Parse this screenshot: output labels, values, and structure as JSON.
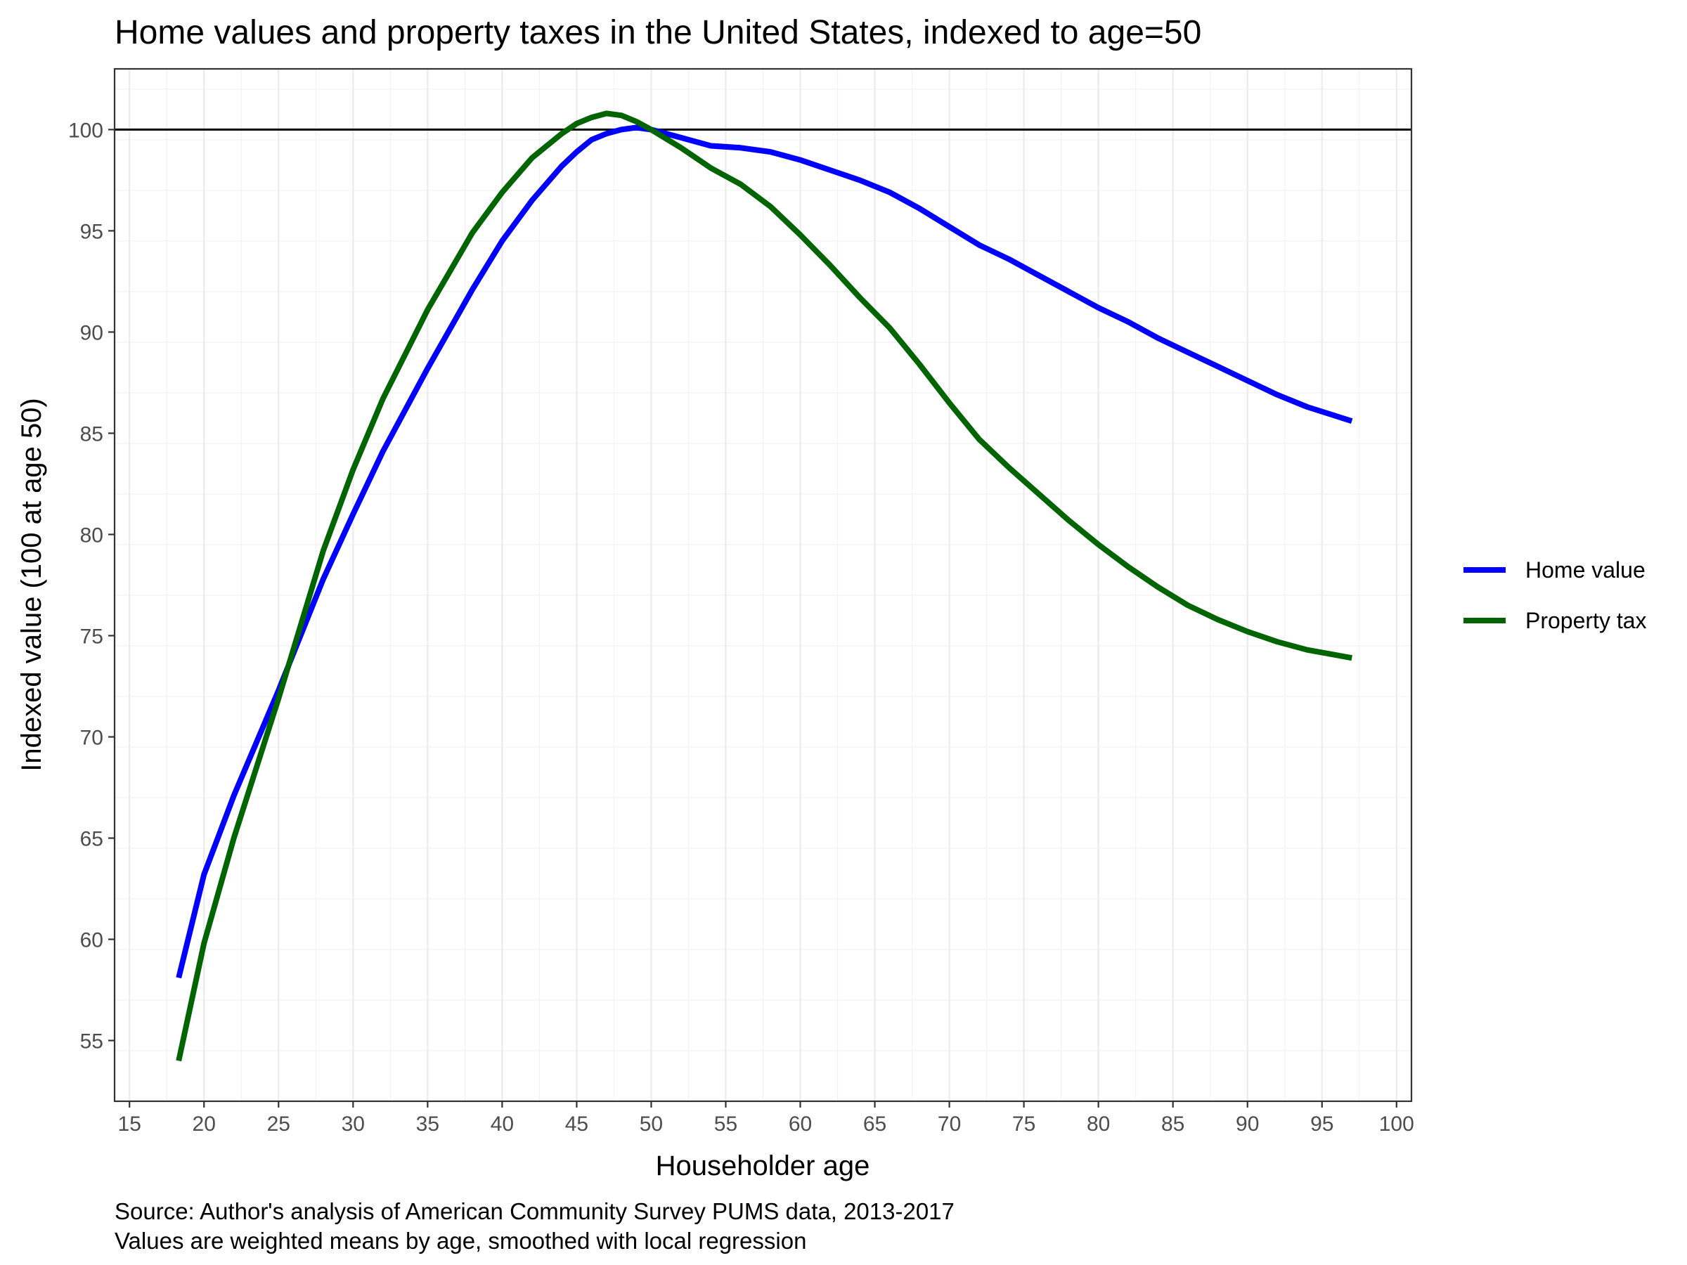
{
  "chart_data": {
    "type": "line",
    "title": "Home values and property taxes in the United States, indexed to age=50",
    "xlabel": "Householder age",
    "ylabel": "Indexed value (100 at age 50)",
    "xlim": [
      14,
      101
    ],
    "ylim": [
      52,
      103
    ],
    "x_ticks": [
      15,
      20,
      25,
      30,
      35,
      40,
      45,
      50,
      55,
      60,
      65,
      70,
      75,
      80,
      85,
      90,
      95,
      100
    ],
    "y_ticks": [
      55,
      60,
      65,
      70,
      75,
      80,
      85,
      90,
      95,
      100
    ],
    "reference_line": 100,
    "grid": true,
    "legend_position": "right",
    "series": [
      {
        "name": "Home value",
        "color": "#0000ff",
        "x": [
          18.3,
          20,
          22,
          25,
          28,
          30,
          32,
          35,
          38,
          40,
          42,
          44,
          45,
          46,
          47,
          48,
          49,
          50,
          52,
          54,
          56,
          58,
          60,
          62,
          64,
          66,
          68,
          70,
          72,
          74,
          76,
          78,
          80,
          82,
          84,
          86,
          88,
          90,
          92,
          94,
          97
        ],
        "y": [
          58.1,
          63.2,
          67.1,
          72.3,
          77.8,
          81.0,
          84.1,
          88.2,
          92.1,
          94.5,
          96.5,
          98.2,
          98.9,
          99.5,
          99.8,
          100.0,
          100.1,
          100.0,
          99.6,
          99.2,
          99.1,
          98.9,
          98.5,
          98.0,
          97.5,
          96.9,
          96.1,
          95.2,
          94.3,
          93.6,
          92.8,
          92.0,
          91.2,
          90.5,
          89.7,
          89.0,
          88.3,
          87.6,
          86.9,
          86.3,
          85.6
        ]
      },
      {
        "name": "Property tax",
        "color": "#006400",
        "x": [
          18.3,
          20,
          22,
          25,
          28,
          30,
          32,
          35,
          38,
          40,
          42,
          44,
          45,
          46,
          47,
          48,
          49,
          50,
          52,
          54,
          56,
          58,
          60,
          62,
          64,
          66,
          68,
          70,
          72,
          74,
          76,
          78,
          80,
          82,
          84,
          86,
          88,
          90,
          92,
          94,
          97
        ],
        "y": [
          54.0,
          59.8,
          65.0,
          71.9,
          79.2,
          83.2,
          86.7,
          91.1,
          94.9,
          96.9,
          98.6,
          99.8,
          100.3,
          100.6,
          100.8,
          100.7,
          100.4,
          100.0,
          99.1,
          98.1,
          97.3,
          96.2,
          94.8,
          93.3,
          91.7,
          90.2,
          88.4,
          86.5,
          84.7,
          83.3,
          82.0,
          80.7,
          79.5,
          78.4,
          77.4,
          76.5,
          75.8,
          75.2,
          74.7,
          74.3,
          73.9
        ]
      }
    ],
    "caption_lines": [
      "Source: Author's analysis of American Community Survey PUMS data, 2013-2017",
      "Values are weighted means by age, smoothed with local regression"
    ]
  }
}
